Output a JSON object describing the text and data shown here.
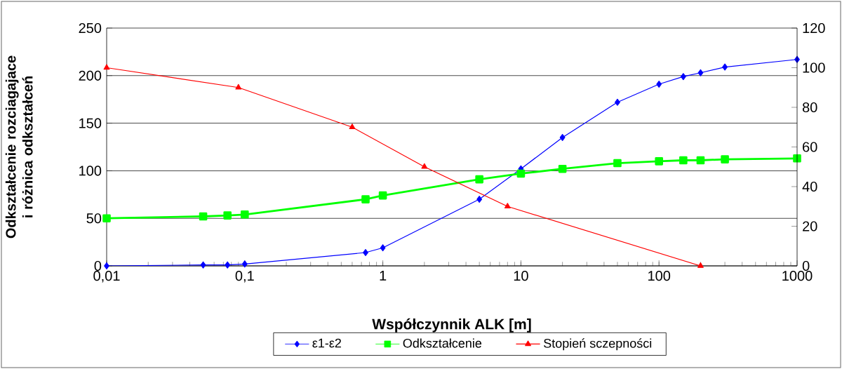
{
  "chart_data": {
    "type": "line",
    "xlabel": "Współczynnik ALK [m]",
    "ylabel": "Odkształcenie rozciagajace i różnica odkształceń",
    "log": "x",
    "grid": "y",
    "legend": "bottom",
    "xlim": [
      0.01,
      1000
    ],
    "xticks": [
      {
        "value": 0.01,
        "label": "0,01"
      },
      {
        "value": 0.1,
        "label": "0,1"
      },
      1,
      10,
      100,
      1000
    ],
    "ylim": [
      0,
      250
    ],
    "yticks": [
      0,
      50,
      100,
      150,
      200,
      250
    ],
    "y2lim": [
      0,
      120
    ],
    "y2ticks": [
      0,
      20,
      40,
      60,
      80,
      100,
      120
    ],
    "series": [
      {
        "name": "ε1-ε2",
        "color": "#0000ff",
        "marker": "diamond",
        "x": [
          0.01,
          0.05,
          0.075,
          0.1,
          0.75,
          1,
          5,
          10,
          20,
          50,
          100,
          150,
          200,
          300,
          1000
        ],
        "values": [
          0,
          1,
          1,
          2,
          14,
          19,
          70,
          102,
          135,
          172,
          191,
          199,
          203,
          209,
          217
        ]
      },
      {
        "name": "Odkształcenie",
        "color": "#00ff00",
        "marker": "square",
        "x": [
          0.01,
          0.05,
          0.075,
          0.1,
          0.75,
          1,
          5,
          10,
          20,
          50,
          100,
          150,
          200,
          300,
          1000
        ],
        "values": [
          50,
          52,
          53,
          54,
          70,
          74,
          91,
          97,
          102,
          108,
          110,
          111,
          111,
          112,
          113
        ]
      },
      {
        "name": "Stopień sczepności",
        "color": "#ff0000",
        "marker": "triangle",
        "axis": "y2",
        "x": [
          0.01,
          0.09,
          0.6,
          2,
          8,
          200
        ],
        "values": [
          100,
          90,
          70,
          50,
          30,
          0
        ]
      }
    ]
  }
}
